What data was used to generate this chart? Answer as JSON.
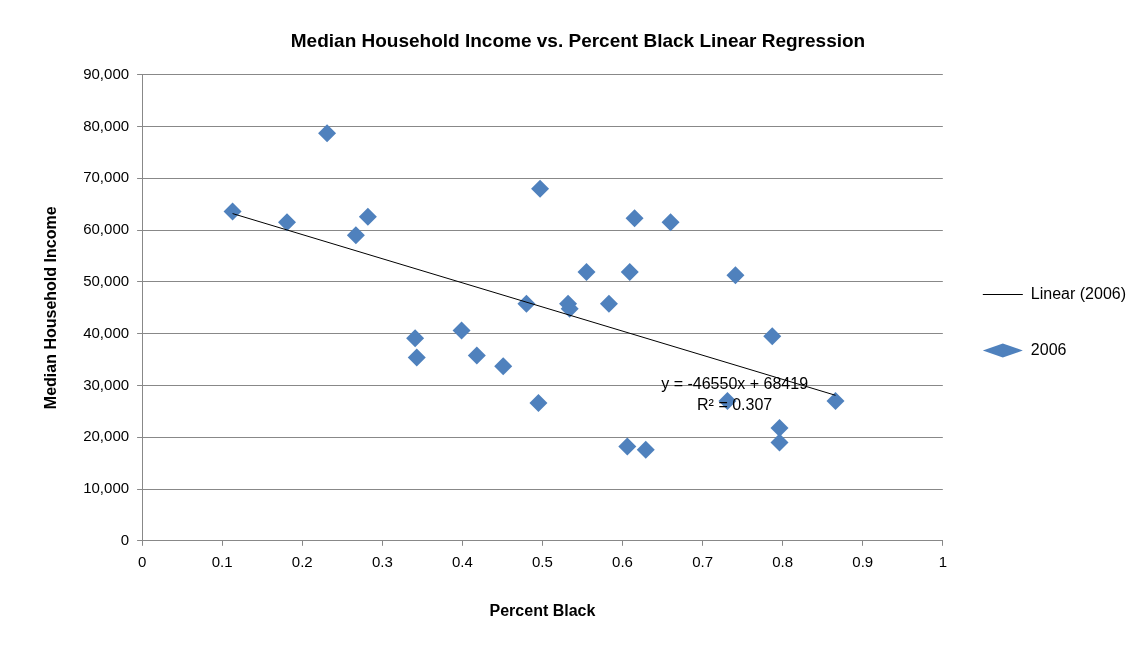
{
  "chart_data": {
    "type": "scatter",
    "title": "Median Household Income vs. Percent Black Linear Regression",
    "xlabel": "Percent Black",
    "ylabel": "Median Household Income",
    "series": [
      {
        "name": "2006",
        "color": "#4f81bd",
        "marker": "diamond",
        "x": [
          0.113,
          0.181,
          0.231,
          0.267,
          0.282,
          0.341,
          0.343,
          0.399,
          0.418,
          0.451,
          0.48,
          0.495,
          0.497,
          0.532,
          0.534,
          0.555,
          0.583,
          0.606,
          0.609,
          0.615,
          0.629,
          0.66,
          0.731,
          0.741,
          0.787,
          0.796,
          0.796,
          0.866
        ],
        "values": [
          63600,
          61500,
          78700,
          59000,
          62600,
          39100,
          35400,
          40600,
          35800,
          33700,
          45800,
          26600,
          68000,
          45800,
          44800,
          51900,
          45800,
          18200,
          51900,
          62300,
          17600,
          61500,
          27000,
          51300,
          39500,
          21800,
          19000,
          27000
        ]
      },
      {
        "name": "Linear (2006)",
        "type": "line",
        "color": "#000000",
        "marker": "none",
        "line_style": "solid",
        "x": [
          0.113,
          0.866
        ],
        "values": [
          63200,
          28100
        ]
      }
    ],
    "xlim": [
      0,
      1
    ],
    "xticks": [
      0,
      0.1,
      0.2,
      0.3,
      0.4,
      0.5,
      0.6,
      0.7,
      0.8,
      0.9,
      1
    ],
    "ylim": [
      0,
      90000
    ],
    "yticks": [
      {
        "value": 0,
        "label": "0"
      },
      {
        "value": 10000,
        "label": "10,000"
      },
      {
        "value": 20000,
        "label": "20,000"
      },
      {
        "value": 30000,
        "label": "30,000"
      },
      {
        "value": 40000,
        "label": "40,000"
      },
      {
        "value": 50000,
        "label": "50,000"
      },
      {
        "value": 60000,
        "label": "60,000"
      },
      {
        "value": 70000,
        "label": "70,000"
      },
      {
        "value": 80000,
        "label": "80,000"
      },
      {
        "value": 90000,
        "label": "90,000"
      }
    ],
    "grid": "y",
    "legend": "right",
    "annotations": [
      "y = -46550x + 68419",
      "R² = 0.307"
    ]
  }
}
